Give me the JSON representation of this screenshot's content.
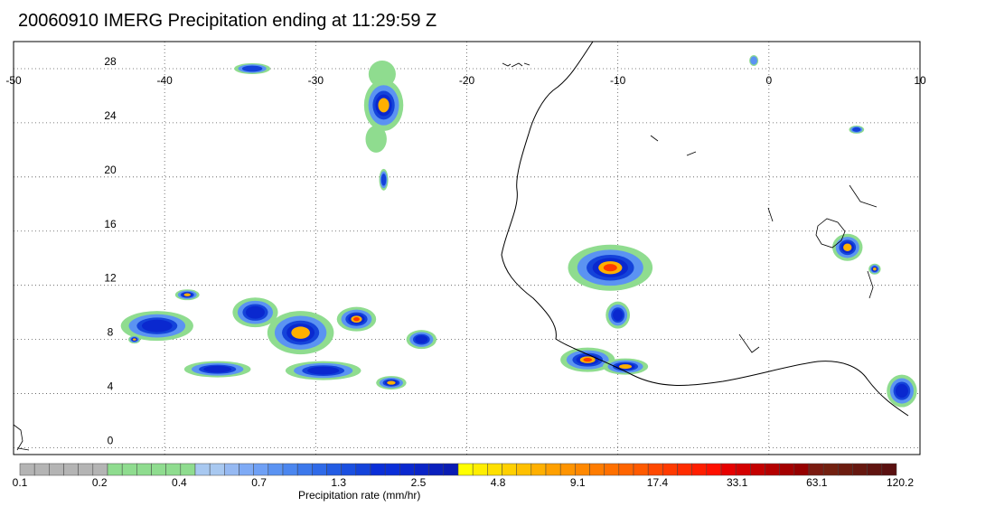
{
  "title": "20060910 IMERG Precipitation ending at 11:29:59 Z",
  "map": {
    "lon_range": [
      -50,
      10
    ],
    "lat_range": [
      -0.5,
      30
    ],
    "lon_ticks": [
      -50,
      -40,
      -30,
      -20,
      -10,
      0,
      10
    ],
    "lat_ticks": [
      0,
      4,
      8,
      12,
      16,
      20,
      24,
      28
    ],
    "grid": "dotted"
  },
  "colorbar": {
    "label": "Precipitation rate (mm/hr)",
    "tick_labels": [
      "0.1",
      "0.2",
      "0.4",
      "0.7",
      "1.3",
      "2.5",
      "4.8",
      "9.1",
      "17.4",
      "33.1",
      "63.1",
      "120.2"
    ],
    "colors": [
      "#b4b4b4",
      "#b4b4b4",
      "#b4b4b4",
      "#b4b4b4",
      "#b4b4b4",
      "#b4b4b4",
      "#8fdc8f",
      "#8fdc8f",
      "#8fdc8f",
      "#8fdc8f",
      "#8fdc8f",
      "#8fdc8f",
      "#a8c8f0",
      "#a8c8f0",
      "#96b9f2",
      "#7eaaf5",
      "#6fa0f5",
      "#5b93f2",
      "#4b86ef",
      "#3c78eb",
      "#2f6ae8",
      "#235ce3",
      "#1a4fe0",
      "#1443da",
      "#0a2ed8",
      "#0a2ed8",
      "#0a28cf",
      "#0a24c6",
      "#0a20bd",
      "#0a1cb3",
      "#ffff00",
      "#ffee00",
      "#ffe000",
      "#ffd000",
      "#ffc000",
      "#ffb000",
      "#ffa000",
      "#ff9400",
      "#ff8800",
      "#ff7c00",
      "#ff7000",
      "#ff6400",
      "#ff5a00",
      "#ff4800",
      "#ff3a00",
      "#ff2c00",
      "#ff1e00",
      "#ff1000",
      "#e60000",
      "#d40000",
      "#c40000",
      "#b40000",
      "#a40000",
      "#960000",
      "#7a1a10",
      "#722010",
      "#6c1c10",
      "#661810",
      "#601410",
      "#5a1010"
    ]
  },
  "precip_systems": [
    {
      "lon": -34.2,
      "lat": 28.0,
      "rx": 1.2,
      "ry": 0.4,
      "max_mm_hr": 1.3
    },
    {
      "lon": -25.6,
      "lat": 27.6,
      "rx": 0.9,
      "ry": 1.0,
      "max_mm_hr": 0.4
    },
    {
      "lon": -25.5,
      "lat": 25.3,
      "rx": 1.3,
      "ry": 1.9,
      "max_mm_hr": 9.1
    },
    {
      "lon": -26.0,
      "lat": 22.8,
      "rx": 0.7,
      "ry": 1.0,
      "max_mm_hr": 0.4
    },
    {
      "lon": -25.5,
      "lat": 19.8,
      "rx": 0.3,
      "ry": 0.8,
      "max_mm_hr": 1.3
    },
    {
      "lon": -40.5,
      "lat": 9.0,
      "rx": 2.4,
      "ry": 1.1,
      "max_mm_hr": 2.5
    },
    {
      "lon": -38.5,
      "lat": 11.3,
      "rx": 0.8,
      "ry": 0.4,
      "max_mm_hr": 9.1
    },
    {
      "lon": -42.0,
      "lat": 8.0,
      "rx": 0.4,
      "ry": 0.3,
      "max_mm_hr": 9.1
    },
    {
      "lon": -34.0,
      "lat": 10.0,
      "rx": 1.5,
      "ry": 1.1,
      "max_mm_hr": 2.5
    },
    {
      "lon": -31.0,
      "lat": 8.5,
      "rx": 2.2,
      "ry": 1.6,
      "max_mm_hr": 9.1
    },
    {
      "lon": -27.3,
      "lat": 9.5,
      "rx": 1.3,
      "ry": 0.9,
      "max_mm_hr": 17.4
    },
    {
      "lon": -29.5,
      "lat": 5.7,
      "rx": 2.5,
      "ry": 0.7,
      "max_mm_hr": 2.5
    },
    {
      "lon": -36.5,
      "lat": 5.8,
      "rx": 2.2,
      "ry": 0.6,
      "max_mm_hr": 2.5
    },
    {
      "lon": -23.0,
      "lat": 8.0,
      "rx": 1.0,
      "ry": 0.7,
      "max_mm_hr": 2.5
    },
    {
      "lon": -25.0,
      "lat": 4.8,
      "rx": 1.0,
      "ry": 0.5,
      "max_mm_hr": 9.1
    },
    {
      "lon": -10.5,
      "lat": 13.3,
      "rx": 2.8,
      "ry": 1.7,
      "max_mm_hr": 17.4
    },
    {
      "lon": -10.0,
      "lat": 9.8,
      "rx": 0.8,
      "ry": 1.0,
      "max_mm_hr": 2.5
    },
    {
      "lon": -12.0,
      "lat": 6.5,
      "rx": 1.8,
      "ry": 0.9,
      "max_mm_hr": 17.4
    },
    {
      "lon": -9.5,
      "lat": 6.0,
      "rx": 1.5,
      "ry": 0.6,
      "max_mm_hr": 9.1
    },
    {
      "lon": 5.2,
      "lat": 14.8,
      "rx": 1.0,
      "ry": 1.0,
      "max_mm_hr": 9.1
    },
    {
      "lon": 5.8,
      "lat": 23.5,
      "rx": 0.5,
      "ry": 0.3,
      "max_mm_hr": 1.3
    },
    {
      "lon": 7.0,
      "lat": 13.2,
      "rx": 0.4,
      "ry": 0.4,
      "max_mm_hr": 9.1
    },
    {
      "lon": 8.8,
      "lat": 4.2,
      "rx": 1.0,
      "ry": 1.2,
      "max_mm_hr": 2.5
    },
    {
      "lon": -1.0,
      "lat": 28.6,
      "rx": 0.3,
      "ry": 0.4,
      "max_mm_hr": 0.7
    }
  ]
}
